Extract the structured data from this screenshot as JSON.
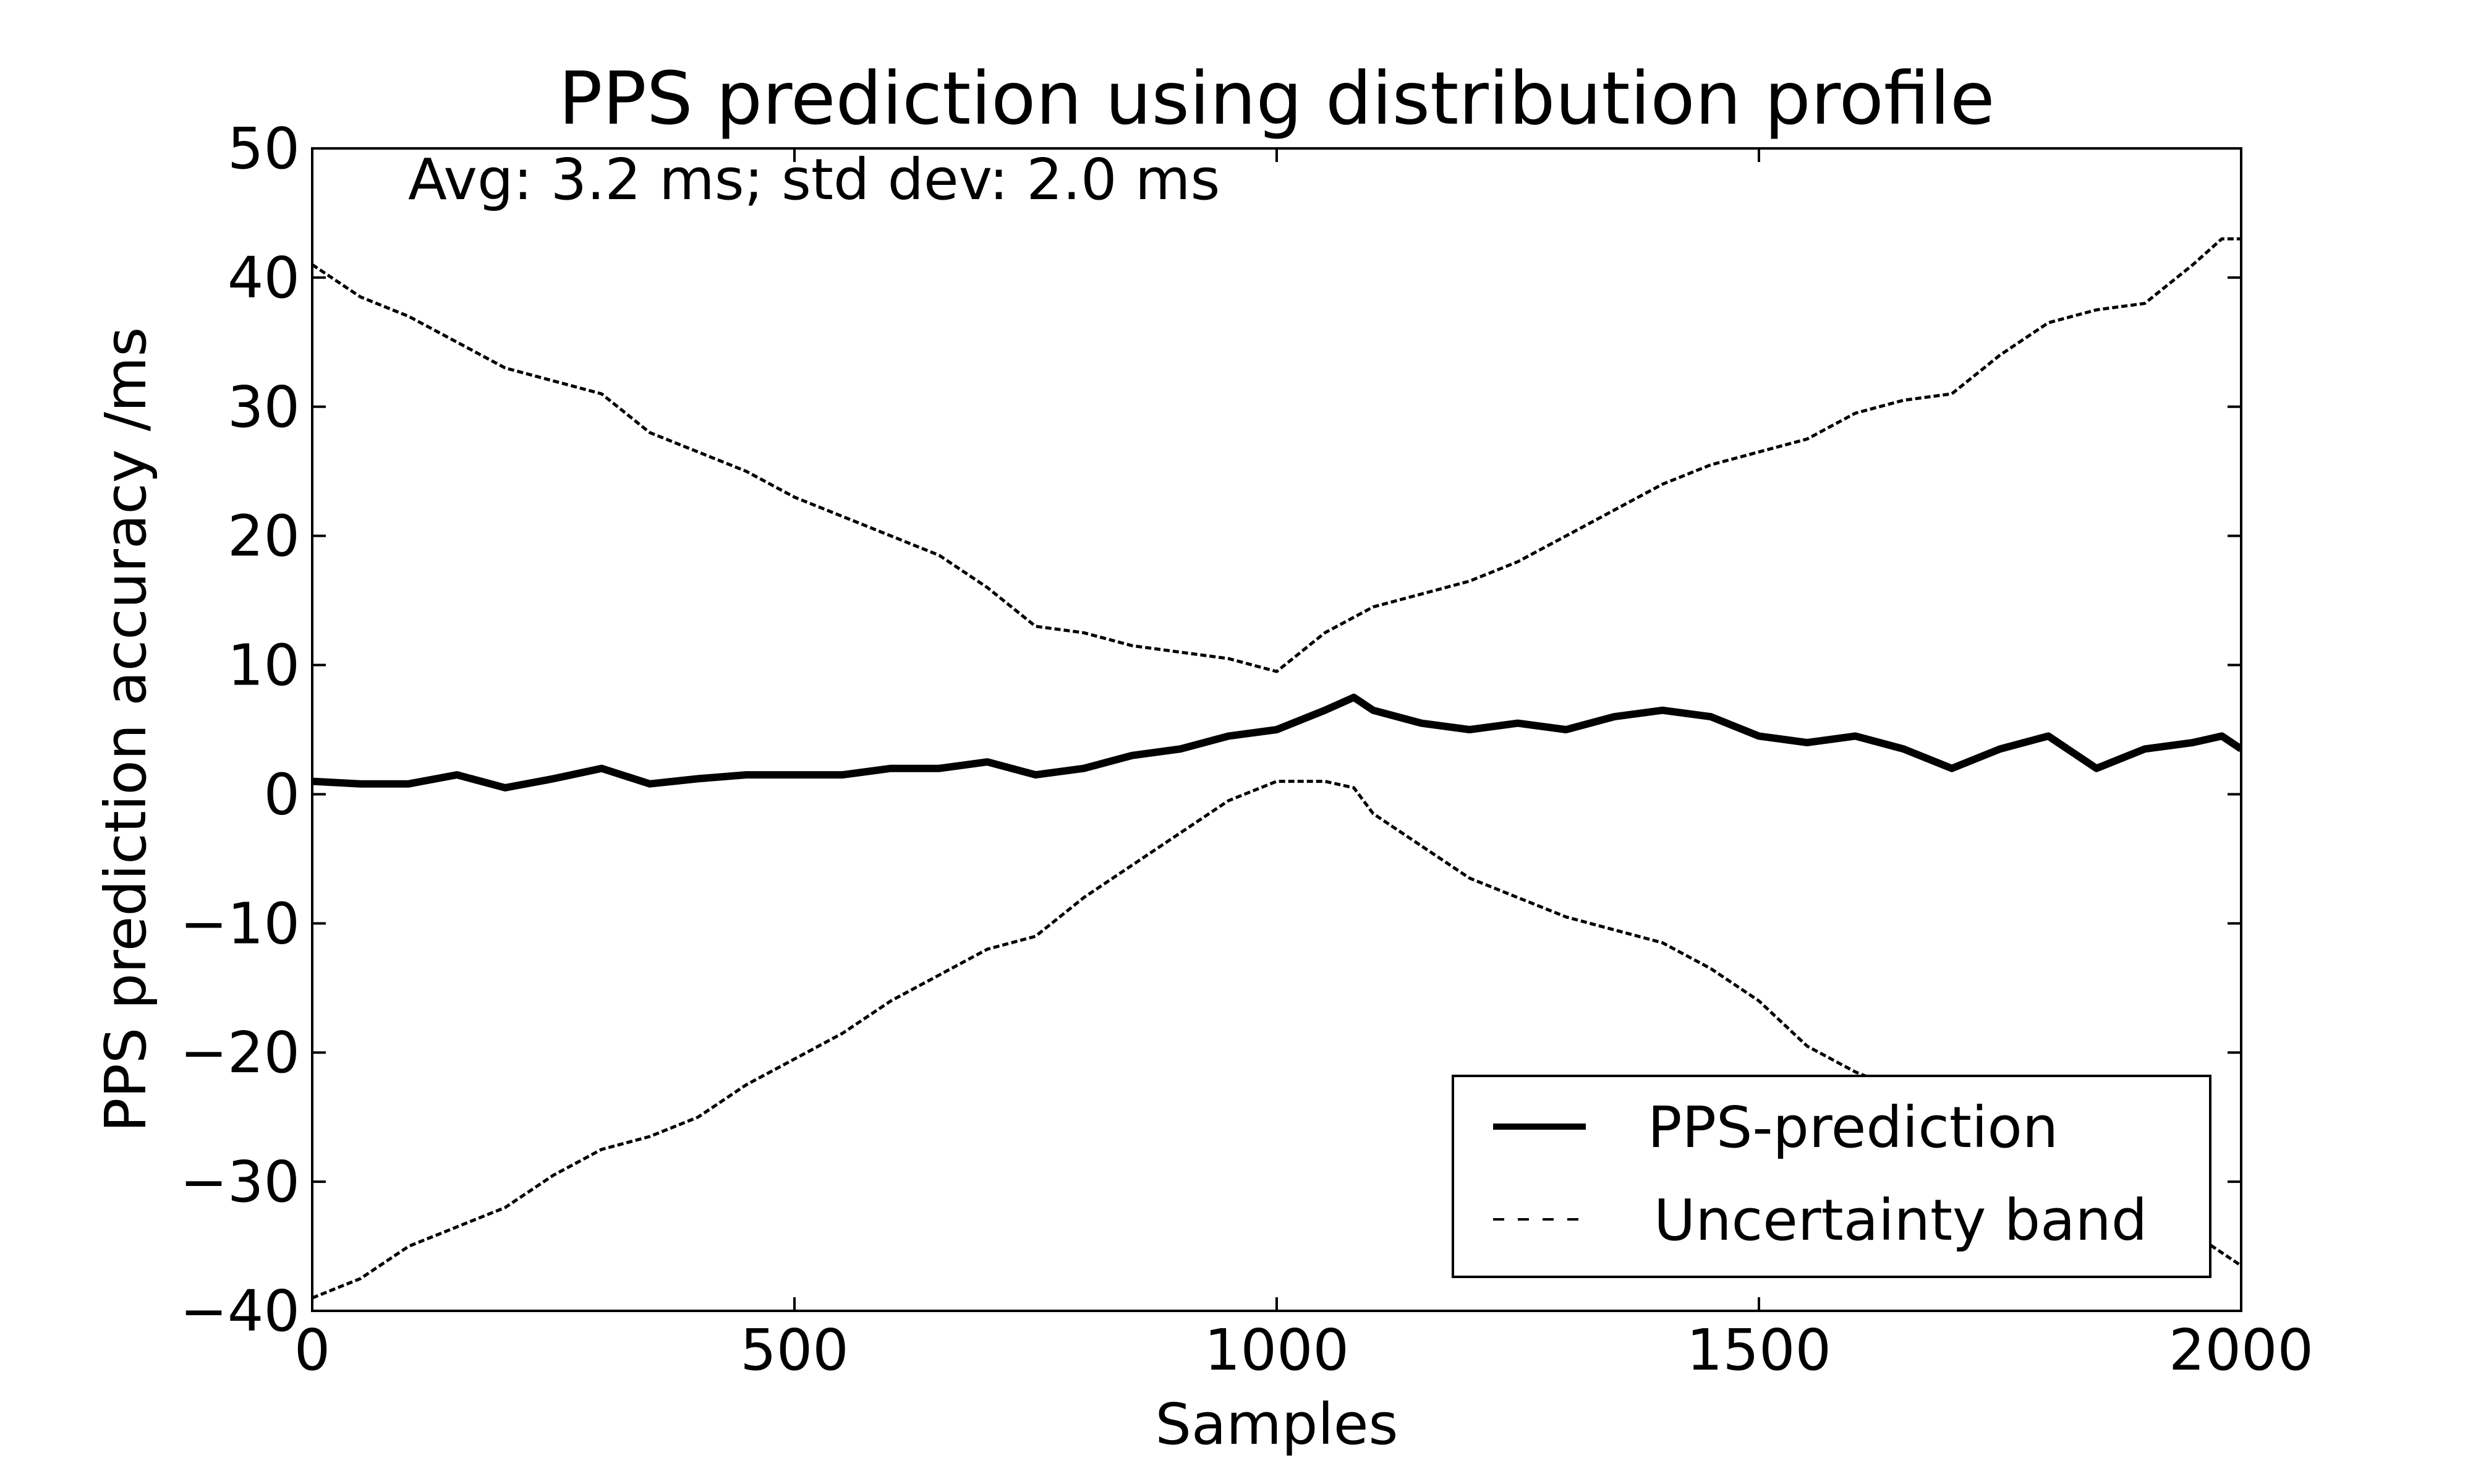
{
  "chart_data": {
    "type": "line",
    "title": "PPS prediction using distribution profile",
    "xlabel": "Samples",
    "ylabel": "PPS prediction accuracy /ms",
    "xlim": [
      0,
      2000
    ],
    "ylim": [
      -40,
      50
    ],
    "xticks": [
      0,
      500,
      1000,
      1500,
      2000
    ],
    "yticks": [
      -40,
      -30,
      -20,
      -10,
      0,
      10,
      20,
      30,
      40,
      50
    ],
    "xtick_labels": [
      "0",
      "500",
      "1000",
      "1500",
      "2000"
    ],
    "ytick_labels": [
      "−40",
      "−30",
      "−20",
      "−10",
      "0",
      "10",
      "20",
      "30",
      "40",
      "50"
    ],
    "annotation": "Avg: 3.2 ms;  std dev: 2.0 ms",
    "grid": false,
    "legend_position": "lower-right",
    "series": [
      {
        "name": "PPS-prediction",
        "style": "solid-thick",
        "color": "#000000",
        "x": [
          0,
          50,
          100,
          150,
          200,
          250,
          300,
          350,
          400,
          450,
          500,
          550,
          600,
          650,
          700,
          750,
          800,
          850,
          900,
          950,
          1000,
          1050,
          1080,
          1100,
          1150,
          1200,
          1250,
          1300,
          1350,
          1400,
          1450,
          1500,
          1550,
          1600,
          1650,
          1700,
          1750,
          1800,
          1850,
          1900,
          1950,
          1980,
          2000
        ],
        "values": [
          1.0,
          0.8,
          0.8,
          1.5,
          0.5,
          1.2,
          2.0,
          0.8,
          1.2,
          1.5,
          1.5,
          1.5,
          2.0,
          2.0,
          2.5,
          1.5,
          2.0,
          3.0,
          3.5,
          4.5,
          5.0,
          6.5,
          7.5,
          6.5,
          5.5,
          5.0,
          5.5,
          5.0,
          6.0,
          6.5,
          6.0,
          4.5,
          4.0,
          4.5,
          3.5,
          2.0,
          3.5,
          4.5,
          2.0,
          3.5,
          4.0,
          4.5,
          3.5
        ]
      },
      {
        "name": "Uncertainty band",
        "style": "dashed",
        "color": "#000000",
        "x": [
          0,
          50,
          100,
          150,
          200,
          250,
          300,
          350,
          400,
          450,
          500,
          550,
          600,
          650,
          700,
          750,
          800,
          850,
          900,
          950,
          1000,
          1050,
          1100,
          1150,
          1200,
          1250,
          1300,
          1350,
          1400,
          1450,
          1500,
          1550,
          1600,
          1650,
          1700,
          1750,
          1800,
          1850,
          1900,
          1950,
          1980,
          2000
        ],
        "values": [
          41.0,
          38.5,
          37.0,
          35.0,
          33.0,
          32.0,
          31.0,
          28.0,
          26.5,
          25.0,
          23.0,
          21.5,
          20.0,
          18.5,
          16.0,
          13.0,
          12.5,
          11.5,
          11.0,
          10.5,
          9.5,
          12.5,
          14.5,
          15.5,
          16.5,
          18.0,
          20.0,
          22.0,
          24.0,
          25.5,
          26.5,
          27.5,
          29.5,
          30.5,
          31.0,
          34.0,
          36.5,
          37.5,
          38.0,
          41.0,
          43.0,
          43.0
        ]
      },
      {
        "name": "",
        "style": "dashed",
        "color": "#000000",
        "x": [
          0,
          50,
          100,
          150,
          200,
          250,
          300,
          350,
          400,
          450,
          500,
          550,
          600,
          650,
          700,
          750,
          800,
          850,
          900,
          950,
          1000,
          1050,
          1080,
          1100,
          1150,
          1200,
          1250,
          1300,
          1350,
          1400,
          1450,
          1500,
          1550,
          1600,
          1650,
          1700,
          1750,
          1800,
          1850,
          1900,
          1950,
          1980,
          2000
        ],
        "values": [
          -39.0,
          -37.5,
          -35.0,
          -33.5,
          -32.0,
          -29.5,
          -27.5,
          -26.5,
          -25.0,
          -22.5,
          -20.5,
          -18.5,
          -16.0,
          -14.0,
          -12.0,
          -11.0,
          -8.0,
          -5.5,
          -3.0,
          -0.5,
          1.0,
          1.0,
          0.5,
          -1.5,
          -4.0,
          -6.5,
          -8.0,
          -9.5,
          -10.5,
          -11.5,
          -13.5,
          -16.0,
          -19.5,
          -21.5,
          -23.0,
          -24.5,
          -26.5,
          -28.5,
          -30.5,
          -32.5,
          -34.0,
          -35.5,
          -36.5
        ]
      }
    ]
  }
}
